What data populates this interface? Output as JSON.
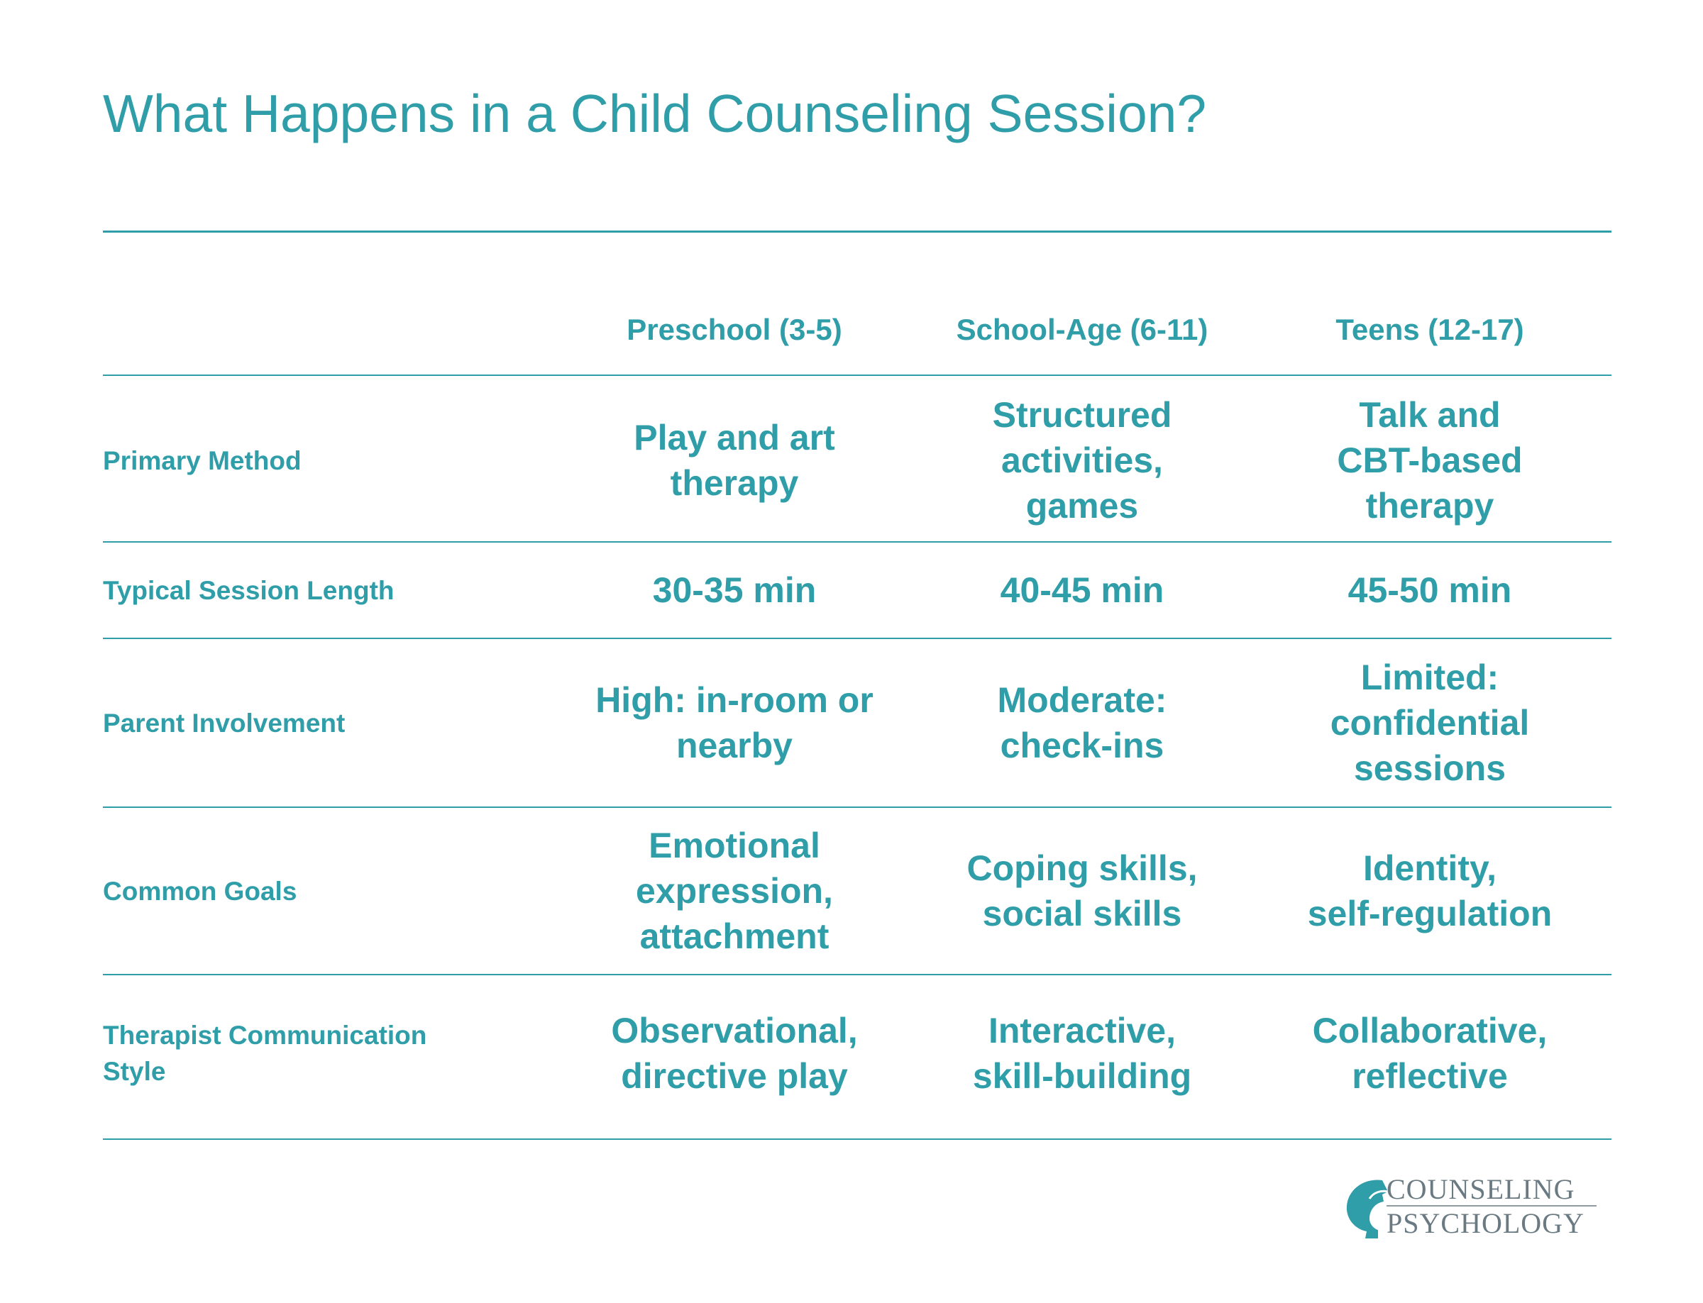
{
  "page": {
    "title": "What Happens in a Child Counseling Session?"
  },
  "colors": {
    "accent": "#2f9ea8",
    "logo_text": "#6a7a82",
    "background": "#ffffff"
  },
  "table": {
    "columns": [
      "Preschool (3-5)",
      "School-Age (6-11)",
      "Teens (12-17)"
    ],
    "rows": [
      {
        "label": "Primary Method",
        "cells": [
          [
            "Play and art",
            "therapy"
          ],
          [
            "Structured",
            "activities,",
            "games"
          ],
          [
            "Talk and",
            "CBT-based",
            "therapy"
          ]
        ]
      },
      {
        "label": "Typical Session Length",
        "cells": [
          [
            "30-35 min"
          ],
          [
            "40-45 min"
          ],
          [
            "45-50 min"
          ]
        ]
      },
      {
        "label": "Parent Involvement",
        "cells": [
          [
            "High: in-room or",
            "nearby"
          ],
          [
            "Moderate:",
            "check-ins"
          ],
          [
            "Limited:",
            "confidential",
            "sessions"
          ]
        ]
      },
      {
        "label": "Common Goals",
        "cells": [
          [
            "Emotional",
            "expression,",
            "attachment"
          ],
          [
            "Coping skills,",
            "social skills"
          ],
          [
            "Identity,",
            "self-regulation"
          ]
        ]
      },
      {
        "label": "Therapist Communication Style",
        "cells": [
          [
            "Observational,",
            "directive play"
          ],
          [
            "Interactive,",
            "skill-building"
          ],
          [
            "Collaborative,",
            "reflective"
          ]
        ]
      }
    ]
  },
  "logo": {
    "line1": "COUNSELING",
    "line2": "PSYCHOLOGY",
    "icon": "head-profile-icon"
  }
}
